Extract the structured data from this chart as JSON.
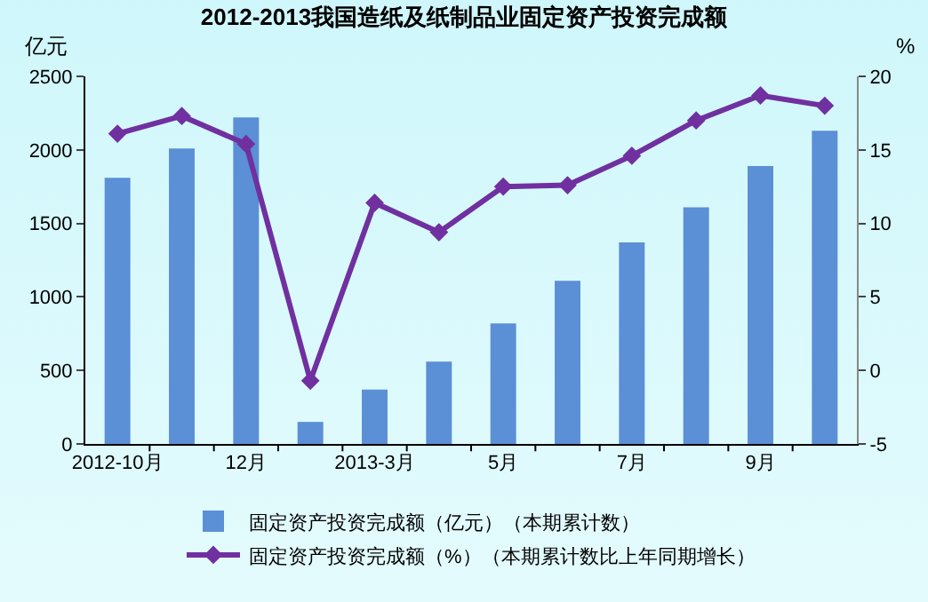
{
  "chart_data": {
    "type": "bar",
    "title": "2012-2013我国造纸及纸制品业固定资产投资完成额",
    "ylabel": "亿元",
    "y2label": "%",
    "categories": [
      "2012-10月",
      null,
      "12月",
      null,
      "2013-3月",
      null,
      "5月",
      null,
      "7月",
      null,
      "9月",
      null
    ],
    "series": [
      {
        "name": "固定资产投资完成额（亿元）（本期累计数）",
        "color": "#5b8fd6",
        "values": [
          1810,
          2010,
          2220,
          150,
          370,
          560,
          820,
          1110,
          1370,
          1610,
          1890,
          2130
        ]
      },
      {
        "name": "固定资产投资完成额（%）（本期累计数比上年同期增长）",
        "type": "line",
        "axis": "y2",
        "color": "#7030a0",
        "marker": "diamond",
        "values": [
          16.1,
          17.3,
          15.4,
          -0.7,
          11.4,
          9.4,
          12.5,
          12.6,
          14.6,
          17.0,
          18.7,
          18.0
        ]
      }
    ],
    "ylim": [
      0,
      2500
    ],
    "yticks": [
      0,
      500,
      1000,
      1500,
      2000,
      2500
    ],
    "y2lim": [
      -5,
      20
    ],
    "y2ticks": [
      -5,
      0,
      5,
      10,
      15,
      20
    ],
    "grid": false,
    "legend": "bottom"
  }
}
